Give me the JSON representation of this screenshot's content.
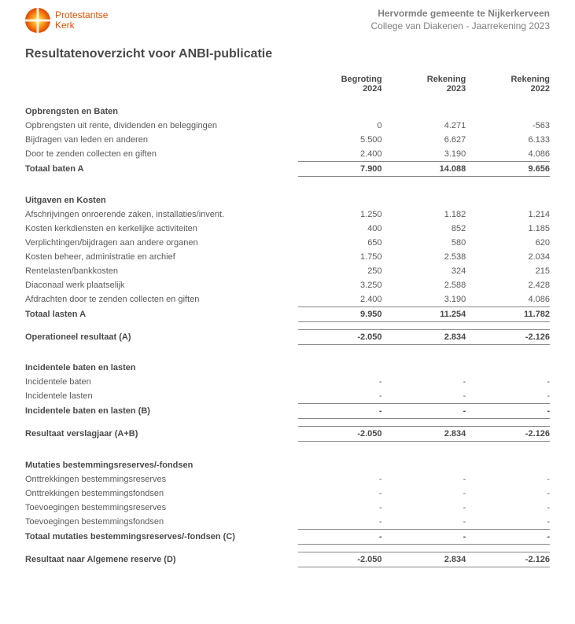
{
  "logo": {
    "line1": "Protestantse",
    "line2": "Kerk"
  },
  "org": {
    "title": "Hervormde gemeente te Nijkerkerveen",
    "sub": "College van Diakenen - Jaarrekening 2023"
  },
  "title": "Resultatenoverzicht voor ANBI-publicatie",
  "columns": {
    "c1a": "Begroting",
    "c1b": "2024",
    "c2a": "Rekening",
    "c2b": "2023",
    "c3a": "Rekening",
    "c3b": "2022"
  },
  "s1": {
    "head": "Opbrengsten en Baten",
    "r1": {
      "l": "Opbrengsten uit rente, dividenden en beleggingen",
      "v": [
        "0",
        "4.271",
        "-563"
      ]
    },
    "r2": {
      "l": "Bijdragen van leden en anderen",
      "v": [
        "5.500",
        "6.627",
        "6.133"
      ]
    },
    "r3": {
      "l": "Door te zenden collecten en giften",
      "v": [
        "2.400",
        "3.190",
        "4.086"
      ]
    },
    "tot": {
      "l": "Totaal baten A",
      "v": [
        "7.900",
        "14.088",
        "9.656"
      ]
    }
  },
  "s2": {
    "head": "Uitgaven en Kosten",
    "r1": {
      "l": "Afschrijvingen onroerende zaken, installaties/invent.",
      "v": [
        "1.250",
        "1.182",
        "1.214"
      ]
    },
    "r2": {
      "l": "Kosten kerkdiensten en kerkelijke activiteiten",
      "v": [
        "400",
        "852",
        "1.185"
      ]
    },
    "r3": {
      "l": "Verplichtingen/bijdragen aan andere organen",
      "v": [
        "650",
        "580",
        "620"
      ]
    },
    "r4": {
      "l": "Kosten beheer, administratie en archief",
      "v": [
        "1.750",
        "2.538",
        "2.034"
      ]
    },
    "r5": {
      "l": "Rentelasten/bankkosten",
      "v": [
        "250",
        "324",
        "215"
      ]
    },
    "r6": {
      "l": "Diaconaal werk plaatselijk",
      "v": [
        "3.250",
        "2.588",
        "2.428"
      ]
    },
    "r7": {
      "l": "Afdrachten door te zenden collecten en giften",
      "v": [
        "2.400",
        "3.190",
        "4.086"
      ]
    },
    "tot": {
      "l": "Totaal lasten A",
      "v": [
        "9.950",
        "11.254",
        "11.782"
      ]
    }
  },
  "opA": {
    "l": "Operationeel resultaat (A)",
    "v": [
      "-2.050",
      "2.834",
      "-2.126"
    ]
  },
  "s3": {
    "head": "Incidentele baten en lasten",
    "r1": {
      "l": "Incidentele baten",
      "v": [
        "-",
        "-",
        "-"
      ]
    },
    "r2": {
      "l": "Incidentele lasten",
      "v": [
        "-",
        "-",
        "-"
      ]
    },
    "tot": {
      "l": "Incidentele baten en lasten (B)",
      "v": [
        "-",
        "-",
        "-"
      ]
    }
  },
  "resAB": {
    "l": "Resultaat verslagjaar (A+B)",
    "v": [
      "-2.050",
      "2.834",
      "-2.126"
    ]
  },
  "s4": {
    "head": "Mutaties bestemmingsreserves/-fondsen",
    "r1": {
      "l": "Onttrekkingen bestemmingsreserves",
      "v": [
        "-",
        "-",
        "-"
      ]
    },
    "r2": {
      "l": "Onttrekkingen bestemmingsfondsen",
      "v": [
        "-",
        "-",
        "-"
      ]
    },
    "r3": {
      "l": "Toevoegingen bestemmingsreserves",
      "v": [
        "-",
        "-",
        "-"
      ]
    },
    "r4": {
      "l": "Toevoegingen bestemmingsfondsen",
      "v": [
        "-",
        "-",
        "-"
      ]
    },
    "tot": {
      "l": "Totaal mutaties bestemmingsreserves/-fondsen (C)",
      "v": [
        "-",
        "-",
        "-"
      ]
    }
  },
  "resD": {
    "l": "Resultaat naar Algemene reserve (D)",
    "v": [
      "-2.050",
      "2.834",
      "-2.126"
    ]
  }
}
